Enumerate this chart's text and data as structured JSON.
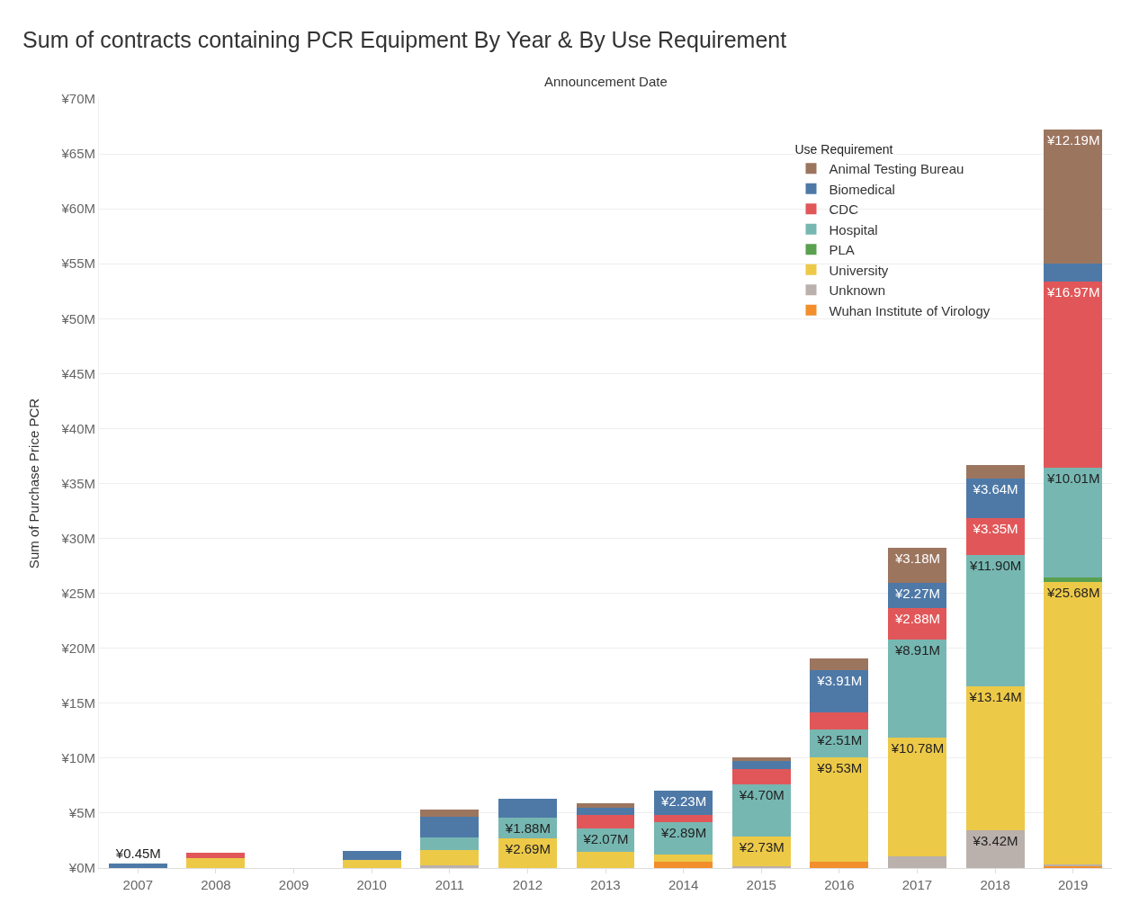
{
  "chart_data": {
    "type": "bar",
    "stacked": true,
    "title": "Sum of contracts containing PCR Equipment By Year & By Use Requirement",
    "xlabel": "Announcement Date",
    "ylabel": "Sum of Purchase Price PCR",
    "legend_title": "Use Requirement",
    "legend": "top right",
    "grid": "y",
    "categories": [
      "2007",
      "2008",
      "2009",
      "2010",
      "2011",
      "2012",
      "2013",
      "2014",
      "2015",
      "2016",
      "2017",
      "2018",
      "2019"
    ],
    "ylim": [
      0,
      70
    ],
    "yticks": [
      {
        "value": 0,
        "label": "¥0M"
      },
      {
        "value": 5,
        "label": "¥5M"
      },
      {
        "value": 10,
        "label": "¥10M"
      },
      {
        "value": 15,
        "label": "¥15M"
      },
      {
        "value": 20,
        "label": "¥20M"
      },
      {
        "value": 25,
        "label": "¥25M"
      },
      {
        "value": 30,
        "label": "¥30M"
      },
      {
        "value": 35,
        "label": "¥35M"
      },
      {
        "value": 40,
        "label": "¥40M"
      },
      {
        "value": 45,
        "label": "¥45M"
      },
      {
        "value": 50,
        "label": "¥50M"
      },
      {
        "value": 55,
        "label": "¥55M"
      },
      {
        "value": 60,
        "label": "¥60M"
      },
      {
        "value": 65,
        "label": "¥65M"
      },
      {
        "value": 70,
        "label": "¥70M"
      }
    ],
    "series": [
      {
        "name": "Wuhan Institute of Virology",
        "color": "#f28e2b",
        "values": [
          null,
          null,
          null,
          null,
          null,
          null,
          null,
          0.55,
          null,
          0.55,
          null,
          null,
          0.2
        ],
        "value_labels": [
          null,
          null,
          null,
          null,
          null,
          null,
          null,
          null,
          null,
          null,
          null,
          null,
          null
        ]
      },
      {
        "name": "Unknown",
        "color": "#bab0ac",
        "values": [
          null,
          null,
          null,
          null,
          0.25,
          null,
          null,
          null,
          0.15,
          null,
          1.1,
          3.42,
          0.15
        ],
        "value_labels": [
          null,
          null,
          null,
          null,
          null,
          null,
          null,
          null,
          null,
          null,
          null,
          "¥3.42M",
          null
        ]
      },
      {
        "name": "University",
        "color": "#edc948",
        "values": [
          null,
          0.9,
          null,
          0.7,
          1.35,
          2.69,
          1.5,
          0.7,
          2.73,
          9.53,
          10.78,
          13.14,
          25.68
        ],
        "value_labels": [
          null,
          null,
          null,
          null,
          null,
          "¥2.69M",
          null,
          null,
          "¥2.73M",
          "¥9.53M",
          "¥10.78M",
          "¥13.14M",
          "¥25.68M"
        ]
      },
      {
        "name": "PLA",
        "color": "#59a14f",
        "values": [
          null,
          null,
          null,
          null,
          null,
          null,
          null,
          null,
          null,
          null,
          null,
          null,
          0.4
        ],
        "value_labels": [
          null,
          null,
          null,
          null,
          null,
          null,
          null,
          null,
          null,
          null,
          null,
          null,
          null
        ]
      },
      {
        "name": "Hospital",
        "color": "#76b7b2",
        "values": [
          null,
          null,
          null,
          null,
          1.15,
          1.88,
          2.07,
          2.89,
          4.7,
          2.51,
          8.91,
          11.9,
          10.01
        ],
        "value_labels": [
          null,
          null,
          null,
          null,
          null,
          "¥1.88M",
          "¥2.07M",
          "¥2.89M",
          "¥4.70M",
          "¥2.51M",
          "¥8.91M",
          "¥11.90M",
          "¥10.01M"
        ]
      },
      {
        "name": "CDC",
        "color": "#e15759",
        "values": [
          null,
          0.5,
          null,
          null,
          null,
          null,
          1.25,
          0.65,
          1.45,
          1.55,
          2.88,
          3.35,
          16.97
        ],
        "value_labels": [
          null,
          null,
          null,
          null,
          null,
          null,
          null,
          null,
          null,
          null,
          "¥2.88M",
          "¥3.35M",
          "¥16.97M"
        ]
      },
      {
        "name": "Biomedical",
        "color": "#4e79a7",
        "values": [
          0.45,
          null,
          null,
          0.85,
          1.95,
          1.75,
          0.7,
          2.23,
          0.7,
          3.91,
          2.27,
          3.64,
          1.6
        ],
        "value_labels": [
          "¥0.45M",
          null,
          null,
          null,
          null,
          null,
          null,
          "¥2.23M",
          null,
          "¥3.91M",
          "¥2.27M",
          "¥3.64M",
          null
        ]
      },
      {
        "name": "Animal Testing Bureau",
        "color": "#9c755f",
        "values": [
          null,
          null,
          null,
          null,
          0.6,
          null,
          0.4,
          null,
          0.3,
          1.05,
          3.18,
          1.25,
          12.19
        ],
        "value_labels": [
          null,
          null,
          null,
          null,
          null,
          null,
          null,
          null,
          null,
          null,
          "¥3.18M",
          null,
          "¥12.19M"
        ]
      }
    ]
  }
}
